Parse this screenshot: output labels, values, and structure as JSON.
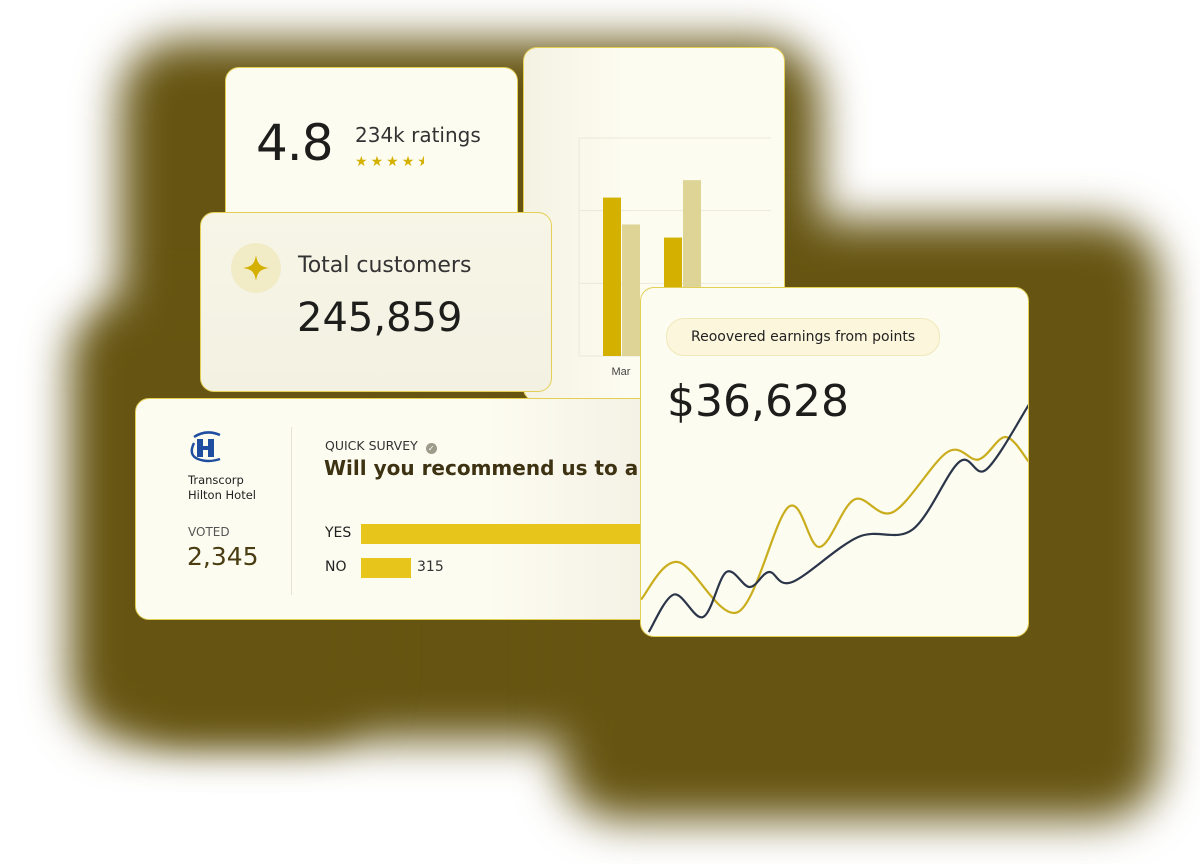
{
  "rating_card": {
    "score": "4.8",
    "ratings_label": "234k ratings",
    "stars": 4.5,
    "star_color": "#d4b000"
  },
  "customers_card": {
    "label": "Total customers",
    "value": "245,859",
    "icon": "sparkle-icon"
  },
  "bar_chart": {
    "type": "bar",
    "categories": [
      "Mar",
      ""
    ],
    "series": [
      {
        "values": [
          2.18,
          1.63
        ],
        "color": "#d4b000"
      },
      {
        "values": [
          1.81,
          2.42
        ],
        "color": "#ddd495"
      }
    ],
    "ylim": [
      0,
      3
    ],
    "grid": true
  },
  "survey_card": {
    "brand_name_line1": "Transcorp",
    "brand_name_line2": "Hilton Hotel",
    "voted_label": "VOTED",
    "voted_value": "2,345",
    "eyebrow": "QUICK SURVEY",
    "question": "Will you recommend us to a f",
    "options": [
      {
        "label": "YES",
        "value": ""
      },
      {
        "label": "NO",
        "value": "315"
      }
    ],
    "bar_color": "#e8c51a"
  },
  "line_card": {
    "pill_label": "Reoovered earnings from points",
    "value": "$36,628",
    "chart_data": {
      "type": "line",
      "grid": false,
      "series": [
        {
          "color": "#c9ad1c",
          "x": [
            0,
            9.5,
            25,
            38,
            46,
            55,
            65,
            79,
            87,
            94,
            100
          ],
          "y": [
            15,
            30,
            10,
            52,
            36,
            55,
            50,
            74,
            71,
            80,
            70
          ]
        },
        {
          "color": "#2b3549",
          "x": [
            2,
            8.5,
            16,
            22,
            28,
            33,
            39,
            56,
            70,
            82,
            89,
            100
          ],
          "y": [
            2,
            17,
            8,
            26,
            20,
            26,
            22,
            40,
            43,
            70,
            67,
            93
          ]
        }
      ]
    }
  }
}
